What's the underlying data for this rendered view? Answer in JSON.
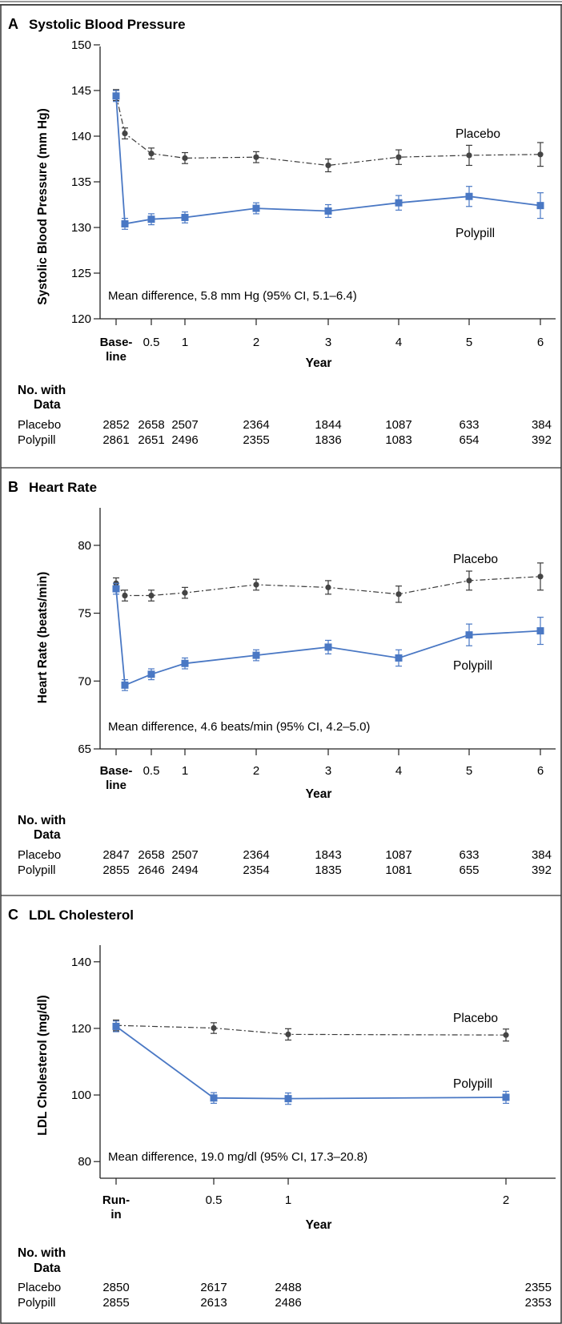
{
  "panels": [
    {
      "letter": "A",
      "title": "Systolic Blood Pressure",
      "ylabel": "Systolic Blood Pressure (mm Hg)",
      "xlabel": "Year",
      "yticks": [
        120,
        125,
        130,
        135,
        140,
        145,
        150
      ],
      "xticks": [
        {
          "v": 0,
          "label": "Base-",
          "label2": "line",
          "bold": true
        },
        {
          "v": 0.5,
          "label": "0.5"
        },
        {
          "v": 1,
          "label": "1"
        },
        {
          "v": 2,
          "label": "2"
        },
        {
          "v": 3,
          "label": "3"
        },
        {
          "v": 4,
          "label": "4"
        },
        {
          "v": 5,
          "label": "5"
        },
        {
          "v": 6,
          "label": "6"
        }
      ],
      "series_labels": {
        "placebo": "Placebo",
        "polypill": "Polypill"
      },
      "note": "Mean difference, 5.8 mm Hg (95% CI, 5.1–6.4)",
      "table": {
        "heading": "No. with",
        "heading2": "Data",
        "rows": [
          {
            "label": "Placebo",
            "values": [
              "2852",
              "2658",
              "2507",
              "2364",
              "1844",
              "1087",
              "633",
              "384"
            ]
          },
          {
            "label": "Polypill",
            "values": [
              "2861",
              "2651",
              "2496",
              "2355",
              "1836",
              "1083",
              "654",
              "392"
            ]
          }
        ]
      }
    },
    {
      "letter": "B",
      "title": "Heart Rate",
      "ylabel": "Heart Rate (beats/min)",
      "xlabel": "Year",
      "yticks": [
        65,
        70,
        75,
        80
      ],
      "xticks": [
        {
          "v": 0,
          "label": "Base-",
          "label2": "line",
          "bold": true
        },
        {
          "v": 0.5,
          "label": "0.5"
        },
        {
          "v": 1,
          "label": "1"
        },
        {
          "v": 2,
          "label": "2"
        },
        {
          "v": 3,
          "label": "3"
        },
        {
          "v": 4,
          "label": "4"
        },
        {
          "v": 5,
          "label": "5"
        },
        {
          "v": 6,
          "label": "6"
        }
      ],
      "series_labels": {
        "placebo": "Placebo",
        "polypill": "Polypill"
      },
      "note": "Mean difference, 4.6 beats/min (95% CI, 4.2–5.0)",
      "table": {
        "heading": "No. with",
        "heading2": "Data",
        "rows": [
          {
            "label": "Placebo",
            "values": [
              "2847",
              "2658",
              "2507",
              "2364",
              "1843",
              "1087",
              "633",
              "384"
            ]
          },
          {
            "label": "Polypill",
            "values": [
              "2855",
              "2646",
              "2494",
              "2354",
              "1835",
              "1081",
              "655",
              "392"
            ]
          }
        ]
      }
    },
    {
      "letter": "C",
      "title": "LDL Cholesterol",
      "ylabel": "LDL Cholesterol (mg/dl)",
      "xlabel": "Year",
      "yticks": [
        80,
        100,
        120,
        140
      ],
      "xticks": [
        {
          "v": 0,
          "label": "Run-",
          "label2": "in",
          "bold": true
        },
        {
          "v": 0.5,
          "label": "0.5"
        },
        {
          "v": 1,
          "label": "1"
        },
        {
          "v": 2,
          "label": "2"
        }
      ],
      "series_labels": {
        "placebo": "Placebo",
        "polypill": "Polypill"
      },
      "note": "Mean difference, 19.0 mg/dl (95% CI, 17.3–20.8)",
      "table": {
        "heading": "No. with",
        "heading2": "Data",
        "rows": [
          {
            "label": "Placebo",
            "values": [
              "2850",
              "2617",
              "2488",
              "2355"
            ]
          },
          {
            "label": "Polypill",
            "values": [
              "2855",
              "2613",
              "2486",
              "2353"
            ]
          }
        ]
      }
    }
  ],
  "chart_data": [
    {
      "type": "line",
      "title": "Systolic Blood Pressure",
      "xlabel": "Year",
      "ylabel": "Systolic Blood Pressure (mm Hg)",
      "ylim": [
        120,
        150
      ],
      "x": [
        0,
        0.1,
        0.5,
        1,
        2,
        3,
        4,
        5,
        6
      ],
      "series": [
        {
          "name": "Placebo",
          "color": "#3a3a3a",
          "style": "dash-dot",
          "points": [
            [
              0,
              144.5,
              0.6
            ],
            [
              0.1,
              140.3,
              0.6
            ],
            [
              0.5,
              138.1,
              0.6
            ],
            [
              1,
              137.6,
              0.6
            ],
            [
              2,
              137.7,
              0.6
            ],
            [
              3,
              136.8,
              0.7
            ],
            [
              4,
              137.7,
              0.8
            ],
            [
              5,
              137.9,
              1.1
            ],
            [
              6,
              138.0,
              1.3
            ]
          ]
        },
        {
          "name": "Polypill",
          "color": "#4a78c4",
          "style": "solid",
          "points": [
            [
              0,
              144.4,
              0.6
            ],
            [
              0.1,
              130.4,
              0.6
            ],
            [
              0.5,
              130.9,
              0.6
            ],
            [
              1,
              131.1,
              0.6
            ],
            [
              2,
              132.1,
              0.6
            ],
            [
              3,
              131.8,
              0.7
            ],
            [
              4,
              132.7,
              0.8
            ],
            [
              5,
              133.4,
              1.1
            ],
            [
              6,
              132.4,
              1.4
            ]
          ]
        }
      ]
    },
    {
      "type": "line",
      "title": "Heart Rate",
      "xlabel": "Year",
      "ylabel": "Heart Rate (beats/min)",
      "ylim": [
        65,
        83
      ],
      "x": [
        0,
        0.1,
        0.5,
        1,
        2,
        3,
        4,
        5,
        6
      ],
      "series": [
        {
          "name": "Placebo",
          "color": "#3a3a3a",
          "style": "dash-dot",
          "points": [
            [
              0,
              77.2,
              0.4
            ],
            [
              0.1,
              76.3,
              0.4
            ],
            [
              0.5,
              76.3,
              0.4
            ],
            [
              1,
              76.5,
              0.4
            ],
            [
              2,
              77.1,
              0.4
            ],
            [
              3,
              76.9,
              0.5
            ],
            [
              4,
              76.4,
              0.6
            ],
            [
              5,
              77.4,
              0.7
            ],
            [
              6,
              77.7,
              1.0
            ]
          ]
        },
        {
          "name": "Polypill",
          "color": "#4a78c4",
          "style": "solid",
          "points": [
            [
              0,
              76.8,
              0.4
            ],
            [
              0.1,
              69.7,
              0.4
            ],
            [
              0.5,
              70.5,
              0.4
            ],
            [
              1,
              71.3,
              0.4
            ],
            [
              2,
              71.9,
              0.4
            ],
            [
              3,
              72.5,
              0.5
            ],
            [
              4,
              71.7,
              0.6
            ],
            [
              5,
              73.4,
              0.8
            ],
            [
              6,
              73.7,
              1.0
            ]
          ]
        }
      ]
    },
    {
      "type": "line",
      "title": "LDL Cholesterol",
      "xlabel": "Year",
      "ylabel": "LDL Cholesterol (mg/dl)",
      "ylim": [
        75,
        145
      ],
      "x": [
        0,
        0.5,
        1,
        2
      ],
      "series": [
        {
          "name": "Placebo",
          "color": "#3a3a3a",
          "style": "dash-dot",
          "points": [
            [
              0,
              120.9,
              1.6
            ],
            [
              0.5,
              120.1,
              1.6
            ],
            [
              1,
              118.2,
              1.7
            ],
            [
              2,
              118.0,
              1.8
            ]
          ]
        },
        {
          "name": "Polypill",
          "color": "#4a78c4",
          "style": "solid",
          "points": [
            [
              0,
              120.6,
              1.6
            ],
            [
              0.5,
              99.1,
              1.6
            ],
            [
              1,
              98.9,
              1.7
            ],
            [
              2,
              99.3,
              1.8
            ]
          ]
        }
      ]
    }
  ]
}
